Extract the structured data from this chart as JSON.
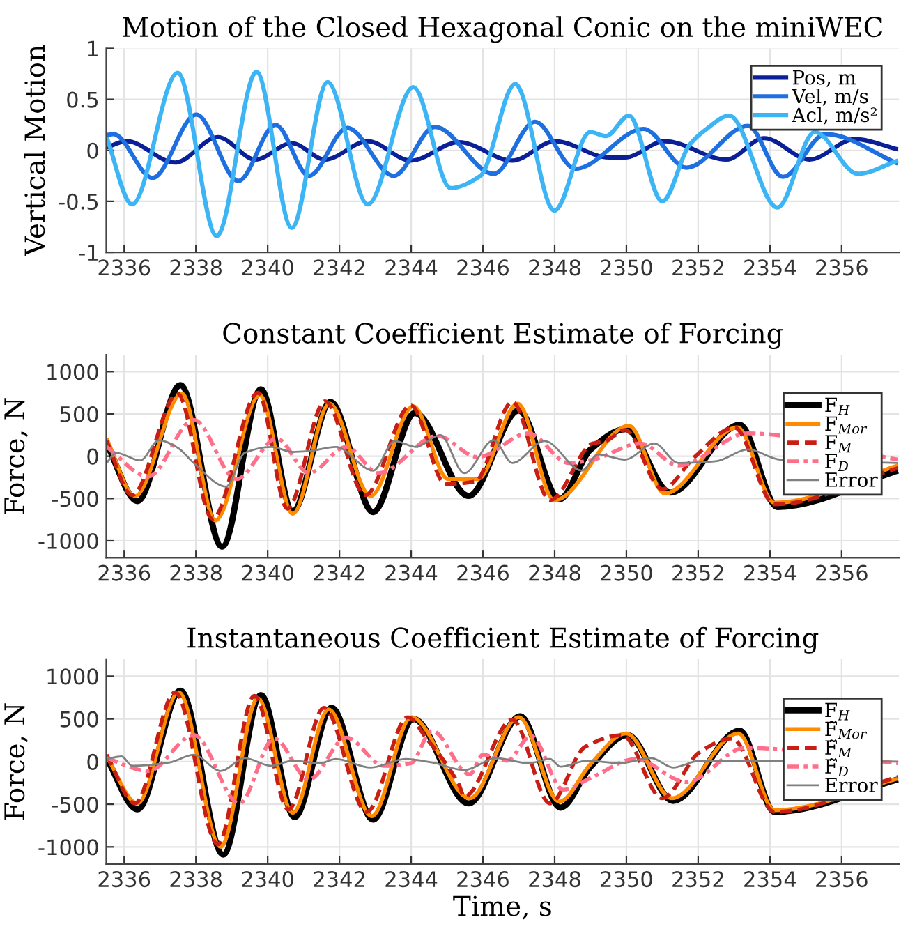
{
  "chart_data": [
    {
      "type": "line",
      "title": "Motion of the Closed Hexagonal Conic on the miniWEC",
      "ylabel": "Vertical Motion",
      "xlim": [
        2335.5,
        2357.6
      ],
      "ylim": [
        -1,
        1
      ],
      "xticks": [
        2336,
        2338,
        2340,
        2342,
        2344,
        2346,
        2348,
        2350,
        2352,
        2354,
        2356
      ],
      "yticks": [
        -1,
        -0.5,
        0,
        0.5,
        1
      ],
      "grid": true,
      "legend": "top right",
      "line_style": "solid",
      "tick_labels": "xy",
      "series": [
        {
          "name": "Pos, m",
          "color": "#0b1f96",
          "x": [
            2335.51,
            2336.07,
            2337.42,
            2338.61,
            2339.66,
            2340.67,
            2341.6,
            2342.79,
            2343.99,
            2345.33,
            2346.82,
            2348.01,
            2349.51,
            2349.96,
            2351.07,
            2352.79,
            2353.84,
            2355.1,
            2356.37,
            2357.57
          ],
          "values": [
            0.03,
            0.09,
            -0.12,
            0.13,
            -0.09,
            0.07,
            -0.09,
            0.09,
            -0.1,
            0.08,
            -0.1,
            0.09,
            -0.07,
            -0.07,
            0.09,
            -0.09,
            0.12,
            -0.09,
            0.11,
            0.01
          ]
        },
        {
          "name": "Vel, m/s",
          "color": "#1e6fe0",
          "x": [
            2335.51,
            2335.7,
            2336.79,
            2338.01,
            2339.18,
            2340.22,
            2341.15,
            2342.22,
            2343.51,
            2344.66,
            2346.3,
            2347.45,
            2348.58,
            2350.48,
            2351.67,
            2353.39,
            2354.36,
            2355.55,
            2357.57
          ],
          "values": [
            0.15,
            0.16,
            -0.27,
            0.35,
            -0.3,
            0.25,
            -0.25,
            0.22,
            -0.25,
            0.23,
            -0.23,
            0.28,
            -0.18,
            0.21,
            -0.17,
            0.24,
            -0.26,
            0.16,
            -0.13
          ]
        },
        {
          "name": "Acl, m/s²",
          "color": "#3db5f5",
          "x": [
            2335.51,
            2336.22,
            2337.49,
            2338.58,
            2339.69,
            2340.67,
            2341.67,
            2342.79,
            2344.06,
            2345.1,
            2345.93,
            2346.9,
            2347.99,
            2348.99,
            2349.43,
            2350.07,
            2351.0,
            2351.75,
            2352.2,
            2352.87,
            2354.21,
            2355.25,
            2356.45,
            2357.57
          ],
          "values": [
            0.13,
            -0.53,
            0.76,
            -0.84,
            0.77,
            -0.76,
            0.67,
            -0.53,
            0.62,
            -0.37,
            -0.25,
            0.65,
            -0.59,
            0.18,
            0.14,
            0.34,
            -0.5,
            0.05,
            0.2,
            0.34,
            -0.56,
            0.18,
            -0.23,
            -0.1
          ]
        }
      ]
    },
    {
      "type": "line",
      "title": "Constant Coefficient Estimate of Forcing",
      "ylabel": "Force, N",
      "xlim": [
        2335.5,
        2357.6
      ],
      "ylim": [
        -1200,
        1200
      ],
      "xticks": [
        2336,
        2338,
        2340,
        2342,
        2344,
        2346,
        2348,
        2350,
        2352,
        2354,
        2356
      ],
      "yticks": [
        -1000,
        -500,
        0,
        500,
        1000
      ],
      "grid": true,
      "legend": "right",
      "tick_labels": "xy",
      "series": [
        {
          "name": "F$_{H}$",
          "color": "#000000",
          "line_style": "solid",
          "x": [
            2335.51,
            2336.37,
            2337.57,
            2338.73,
            2339.81,
            2340.7,
            2341.75,
            2342.94,
            2344.1,
            2345.6,
            2347.0,
            2348.13,
            2349.0,
            2349.99,
            2351.22,
            2353.16,
            2354.21,
            2357.57
          ],
          "values": [
            150,
            -530,
            840,
            -1070,
            790,
            -650,
            640,
            -660,
            510,
            -470,
            540,
            -510,
            80,
            320,
            -430,
            370,
            -600,
            -170
          ]
        },
        {
          "name": "F$_{Mor}$",
          "color": "#ff8c00",
          "line_style": "solid",
          "x": [
            2335.51,
            2336.3,
            2337.61,
            2338.54,
            2339.78,
            2340.7,
            2341.72,
            2342.87,
            2344.06,
            2345.03,
            2345.85,
            2346.97,
            2347.99,
            2350.07,
            2351.07,
            2353.09,
            2354.13,
            2357.57
          ],
          "values": [
            210,
            -470,
            740,
            -760,
            720,
            -680,
            620,
            -470,
            590,
            -270,
            -270,
            620,
            -520,
            360,
            -440,
            340,
            -550,
            -110
          ]
        },
        {
          "name": "F$_{M}$",
          "color": "#c81e14",
          "line_style": "dashed",
          "x": [
            2335.51,
            2336.22,
            2337.49,
            2338.46,
            2339.73,
            2340.55,
            2341.6,
            2342.72,
            2343.99,
            2344.96,
            2345.78,
            2346.82,
            2347.87,
            2349.06,
            2349.43,
            2349.96,
            2351.0,
            2351.9,
            2353.01,
            2354.13,
            2357.57
          ],
          "values": [
            180,
            -460,
            740,
            -740,
            750,
            -620,
            650,
            -460,
            600,
            -330,
            -300,
            640,
            -520,
            150,
            180,
            310,
            -390,
            -10,
            340,
            -570,
            -140
          ]
        },
        {
          "name": "F$_{D}$",
          "color": "#ff6f8a",
          "line_style": "dashdot",
          "x": [
            2335.51,
            2336.67,
            2337.94,
            2339.13,
            2340.25,
            2341.15,
            2342.19,
            2343.09,
            2344.73,
            2345.85,
            2347.27,
            2348.39,
            2349.06,
            2350.4,
            2351.45,
            2353.39,
            2357.57
          ],
          "values": [
            110,
            -240,
            430,
            -270,
            210,
            -200,
            110,
            -200,
            240,
            -10,
            270,
            -80,
            -40,
            150,
            -110,
            270,
            -40
          ]
        },
        {
          "name": "Error",
          "color": "#808080",
          "line_style": "solid",
          "x": [
            2335.51,
            2335.78,
            2336.45,
            2336.97,
            2337.49,
            2337.94,
            2338.84,
            2339.36,
            2340.1,
            2340.7,
            2341.15,
            2341.9,
            2342.94,
            2343.54,
            2344.13,
            2344.81,
            2345.48,
            2346.3,
            2346.82,
            2347.72,
            2348.76,
            2349.21,
            2349.96,
            2350.78,
            2351.45,
            2352.49,
            2353.39,
            2354.28,
            2357.57
          ],
          "values": [
            -80,
            40,
            -50,
            190,
            100,
            -80,
            -360,
            40,
            110,
            50,
            60,
            110,
            -170,
            180,
            110,
            250,
            -200,
            190,
            -80,
            180,
            -170,
            20,
            -40,
            150,
            -80,
            -60,
            80,
            -40,
            -80
          ]
        }
      ]
    },
    {
      "type": "line",
      "title": "Instantaneous Coefficient Estimate of Forcing",
      "ylabel": "Force, N",
      "xlabel": "Time, s",
      "xlim": [
        2335.5,
        2357.6
      ],
      "ylim": [
        -1200,
        1200
      ],
      "xticks": [
        2336,
        2338,
        2340,
        2342,
        2344,
        2346,
        2348,
        2350,
        2352,
        2354,
        2356
      ],
      "yticks": [
        -1000,
        -500,
        0,
        500,
        1000
      ],
      "grid": true,
      "legend": "right",
      "tick_labels": "xy",
      "series": [
        {
          "name": "F$_{H}$",
          "color": "#000000",
          "line_style": "solid",
          "x": [
            2335.51,
            2336.37,
            2337.57,
            2338.76,
            2339.81,
            2340.75,
            2341.78,
            2342.94,
            2344.06,
            2345.6,
            2347.04,
            2348.16,
            2349.0,
            2350.03,
            2351.3,
            2353.16,
            2354.13,
            2357.57
          ],
          "values": [
            40,
            -560,
            830,
            -1090,
            780,
            -650,
            630,
            -680,
            500,
            -490,
            530,
            -540,
            -60,
            310,
            -460,
            360,
            -590,
            -210
          ]
        },
        {
          "name": "F̃$_{Mor}$",
          "color": "#ff8c00",
          "line_style": "solid",
          "x": [
            2335.51,
            2336.37,
            2337.52,
            2338.69,
            2339.73,
            2340.7,
            2341.7,
            2342.9,
            2344.01,
            2345.63,
            2347.0,
            2348.13,
            2349.0,
            2349.99,
            2351.27,
            2353.12,
            2354.13,
            2357.57
          ],
          "values": [
            60,
            -490,
            810,
            -1000,
            740,
            -600,
            610,
            -640,
            520,
            -430,
            520,
            -470,
            -30,
            330,
            -430,
            330,
            -570,
            -200
          ]
        },
        {
          "name": "F̃$_{M}$",
          "color": "#c81e14",
          "line_style": "dashed",
          "x": [
            2335.51,
            2336.3,
            2337.42,
            2338.61,
            2339.63,
            2340.58,
            2341.57,
            2342.76,
            2343.91,
            2344.43,
            2345.33,
            2345.48,
            2346.82,
            2347.87,
            2348.84,
            2349.88,
            2351.0,
            2352.04,
            2352.94,
            2354.13,
            2357.57
          ],
          "values": [
            80,
            -490,
            810,
            -970,
            770,
            -560,
            630,
            -590,
            520,
            270,
            -270,
            -410,
            490,
            -490,
            170,
            310,
            -430,
            110,
            270,
            -590,
            -180
          ]
        },
        {
          "name": "F̃$_{D}$",
          "color": "#ff6f8a",
          "line_style": "dashdot",
          "x": [
            2335.51,
            2336.67,
            2337.94,
            2339.21,
            2340.18,
            2341.15,
            2342.19,
            2343.24,
            2343.99,
            2344.58,
            2345.63,
            2346.0,
            2346.67,
            2347.34,
            2348.24,
            2349.06,
            2350.25,
            2351.67,
            2353.31,
            2357.57
          ],
          "values": [
            40,
            -110,
            310,
            -490,
            270,
            -210,
            280,
            -50,
            -20,
            360,
            -150,
            80,
            10,
            300,
            -330,
            -180,
            30,
            -240,
            160,
            -20
          ]
        },
        {
          "name": "Error",
          "color": "#808080",
          "line_style": "solid",
          "x": [
            2335.51,
            2335.93,
            2336.22,
            2337.27,
            2337.94,
            2338.69,
            2339.36,
            2340.1,
            2340.7,
            2341.45,
            2341.9,
            2342.87,
            2343.84,
            2344.58,
            2345.48,
            2346.37,
            2347.27,
            2347.87,
            2348.16,
            2348.91,
            2349.81,
            2350.7,
            2351.3,
            2352.04,
            2357.57
          ],
          "values": [
            30,
            60,
            -50,
            -10,
            80,
            -110,
            40,
            -50,
            10,
            -20,
            30,
            -70,
            30,
            -10,
            -100,
            40,
            -20,
            30,
            -60,
            10,
            -20,
            40,
            -70,
            10,
            0
          ]
        }
      ]
    }
  ]
}
